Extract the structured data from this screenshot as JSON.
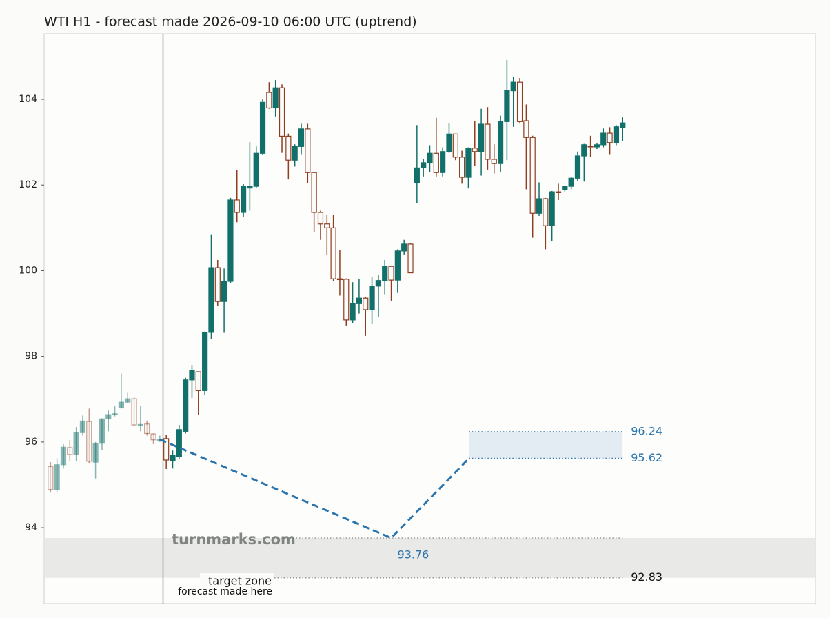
{
  "chart_data": {
    "type": "candlestick",
    "title": "WTI H1 - forecast made 2026-09-10 06:00 UTC (uptrend)",
    "up_color": "#12706a",
    "down_color": "#8f3d1f",
    "forecast_color": "#2a74ad",
    "ylim": [
      92.23,
      105.53
    ],
    "yticks": [
      94,
      96,
      98,
      100,
      102,
      104
    ],
    "xlim": [
      -1,
      119
    ],
    "grid": false,
    "forecast_made_x": 17.5,
    "forecast_made_label": "forecast made here",
    "watermark": "turnmarks.com",
    "open": [
      95.43,
      94.89,
      95.47,
      95.87,
      95.71,
      96.22,
      96.48,
      95.53,
      95.97,
      96.54,
      96.64,
      96.8,
      96.93,
      97.01,
      96.4,
      96.42,
      96.19,
      96.05,
      96.08,
      95.56,
      95.66,
      96.25,
      97.45,
      97.64,
      97.2,
      98.56,
      100.07,
      99.28,
      99.75,
      101.65,
      101.36,
      101.93,
      101.97,
      102.74,
      104.16,
      103.8,
      104.27,
      103.14,
      102.58,
      102.9,
      103.31,
      102.29,
      101.36,
      101.09,
      101.0,
      99.81,
      99.8,
      98.85,
      99.23,
      99.36,
      99.09,
      99.64,
      99.77,
      100.1,
      99.78,
      100.46,
      100.62,
      102.05,
      102.4,
      102.52,
      102.74,
      102.29,
      102.78,
      103.19,
      102.65,
      102.18,
      102.86,
      102.78,
      103.42,
      102.6,
      102.5,
      103.48,
      104.2,
      104.4,
      103.5,
      103.11,
      101.34,
      101.68,
      101.05,
      101.84,
      101.9,
      101.97,
      102.16,
      102.68,
      102.91,
      102.89,
      102.94,
      103.21,
      102.99,
      103.34
    ],
    "high": [
      95.53,
      95.62,
      95.95,
      96.05,
      96.35,
      96.62,
      96.78,
      96.0,
      96.55,
      96.75,
      96.85,
      97.6,
      97.15,
      97.05,
      96.85,
      96.5,
      96.2,
      96.15,
      96.16,
      95.8,
      96.4,
      97.5,
      97.8,
      97.65,
      98.58,
      100.85,
      100.25,
      100.05,
      101.7,
      102.35,
      102.02,
      103.0,
      102.9,
      104.0,
      104.4,
      104.45,
      104.35,
      103.2,
      102.95,
      103.43,
      103.43,
      102.3,
      101.4,
      101.3,
      101.3,
      100.48,
      99.82,
      99.73,
      99.8,
      99.38,
      99.85,
      99.9,
      100.25,
      100.12,
      100.5,
      100.72,
      100.65,
      103.4,
      102.6,
      102.93,
      103.57,
      102.88,
      103.45,
      103.2,
      102.8,
      102.88,
      103.5,
      103.78,
      103.82,
      102.95,
      103.62,
      104.92,
      104.52,
      104.5,
      103.88,
      103.15,
      102.06,
      101.7,
      101.86,
      102.03,
      101.98,
      102.18,
      102.78,
      102.96,
      103.15,
      102.98,
      103.32,
      103.35,
      103.4,
      103.58
    ],
    "low": [
      94.82,
      94.84,
      95.38,
      95.55,
      95.55,
      96.15,
      95.5,
      95.15,
      95.82,
      96.25,
      96.6,
      96.78,
      96.9,
      96.38,
      96.25,
      96.15,
      95.95,
      96.0,
      95.37,
      95.38,
      95.6,
      96.2,
      97.03,
      96.63,
      97.1,
      98.4,
      99.18,
      98.55,
      99.7,
      101.13,
      101.25,
      101.4,
      101.93,
      102.7,
      103.78,
      103.6,
      102.75,
      102.13,
      102.43,
      102.72,
      102.05,
      100.9,
      100.72,
      100.37,
      99.75,
      99.42,
      98.72,
      98.77,
      99.0,
      98.48,
      98.75,
      98.93,
      99.45,
      99.3,
      99.48,
      100.38,
      99.94,
      101.58,
      102.2,
      102.3,
      102.2,
      102.2,
      102.75,
      102.58,
      102.03,
      101.92,
      102.45,
      102.22,
      102.36,
      102.27,
      102.3,
      102.58,
      103.36,
      103.44,
      101.9,
      100.77,
      101.28,
      100.5,
      100.7,
      101.65,
      101.85,
      101.9,
      102.1,
      102.08,
      102.65,
      102.84,
      102.88,
      102.72,
      102.93,
      103.02
    ],
    "close": [
      94.89,
      95.47,
      95.88,
      95.71,
      96.22,
      96.49,
      95.55,
      95.97,
      96.54,
      96.64,
      96.66,
      96.93,
      97.01,
      96.4,
      96.41,
      96.2,
      96.05,
      96.06,
      95.58,
      95.69,
      96.29,
      97.45,
      97.67,
      97.2,
      98.56,
      100.07,
      99.28,
      99.75,
      101.65,
      101.36,
      101.97,
      101.97,
      102.74,
      103.93,
      103.8,
      104.27,
      103.14,
      102.58,
      102.9,
      103.31,
      102.29,
      101.36,
      101.09,
      101.0,
      99.81,
      99.8,
      98.85,
      99.23,
      99.36,
      99.09,
      99.64,
      99.77,
      100.1,
      99.78,
      100.46,
      100.62,
      99.95,
      102.4,
      102.52,
      102.74,
      102.29,
      102.78,
      103.19,
      102.65,
      102.18,
      102.86,
      102.78,
      103.42,
      102.6,
      102.5,
      103.48,
      104.2,
      104.4,
      103.48,
      103.11,
      101.34,
      101.68,
      101.05,
      101.84,
      101.82,
      101.97,
      102.16,
      102.68,
      102.94,
      102.9,
      102.94,
      103.21,
      102.99,
      103.36,
      103.45
    ],
    "forecast": {
      "x": [
        17,
        53,
        65.1
      ],
      "values": [
        96.06,
        93.76,
        95.62
      ]
    },
    "forecast_band": {
      "x": [
        65.1,
        89
      ],
      "low": 95.62,
      "high": 96.24
    },
    "target_zone": {
      "label": "target zone",
      "low": 92.83,
      "high": 93.76
    }
  }
}
